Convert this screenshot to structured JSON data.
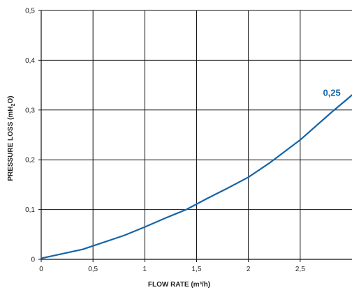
{
  "chart_data": {
    "type": "line",
    "title": "",
    "xlabel": "FLOW RATE (m³/h)",
    "ylabel_main": "PRESSURE LOSS (mH",
    "ylabel_sub": "2",
    "ylabel_tail": "O)",
    "xlim": [
      0,
      3.0
    ],
    "ylim": [
      0,
      0.5
    ],
    "x_ticks": [
      "0",
      "0,5",
      "1",
      "1,5",
      "2",
      "2,5"
    ],
    "x_tick_values": [
      0,
      0.5,
      1,
      1.5,
      2,
      2.5
    ],
    "y_ticks": [
      "0",
      "0,1",
      "0,2",
      "0,3",
      "0,4",
      "0,5"
    ],
    "y_tick_values": [
      0,
      0.1,
      0.2,
      0.3,
      0.4,
      0.5
    ],
    "grid": true,
    "series": [
      {
        "name": "",
        "color": "#1565a8",
        "x": [
          0,
          0.4,
          0.8,
          1.0,
          1.2,
          1.4,
          1.6,
          1.8,
          2.0,
          2.2,
          2.5,
          2.8,
          3.0
        ],
        "y": [
          0.002,
          0.02,
          0.048,
          0.065,
          0.083,
          0.1,
          0.122,
          0.143,
          0.165,
          0.193,
          0.24,
          0.295,
          0.33
        ]
      }
    ],
    "annotations": [
      {
        "text": "0,25",
        "color": "#1565a8",
        "x": 2.72,
        "y": 0.317
      }
    ],
    "partial_title_color": "#23b0e6"
  }
}
